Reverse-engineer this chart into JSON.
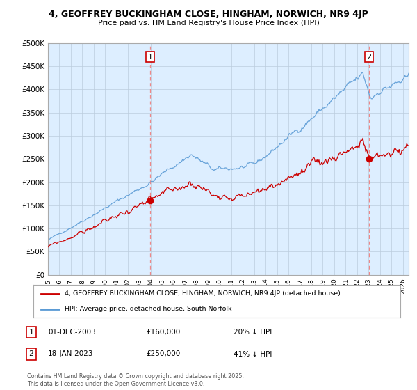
{
  "title_line1": "4, GEOFFREY BUCKINGHAM CLOSE, HINGHAM, NORWICH, NR9 4JP",
  "title_line2": "Price paid vs. HM Land Registry's House Price Index (HPI)",
  "legend_label_red": "4, GEOFFREY BUCKINGHAM CLOSE, HINGHAM, NORWICH, NR9 4JP (detached house)",
  "legend_label_blue": "HPI: Average price, detached house, South Norfolk",
  "annotation1_date": "01-DEC-2003",
  "annotation1_price": "£160,000",
  "annotation1_hpi": "20% ↓ HPI",
  "annotation2_date": "18-JAN-2023",
  "annotation2_price": "£250,000",
  "annotation2_hpi": "41% ↓ HPI",
  "footnote": "Contains HM Land Registry data © Crown copyright and database right 2025.\nThis data is licensed under the Open Government Licence v3.0.",
  "red_line_color": "#cc0000",
  "blue_line_color": "#5b9bd5",
  "plot_bg_color": "#ddeeff",
  "background_color": "#ffffff",
  "grid_color": "#bbccdd",
  "sale1_year": 2003.92,
  "sale1_price": 160000,
  "sale2_year": 2023.05,
  "sale2_price": 250000,
  "ylim_max": 500000,
  "ylim_min": 0
}
